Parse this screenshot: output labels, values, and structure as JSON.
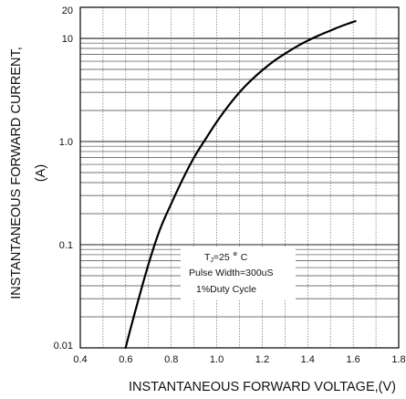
{
  "chart_data": {
    "type": "line",
    "title": "",
    "xlabel": "INSTANTANEOUS FORWARD VOLTAGE,(V)",
    "ylabel_line1": "INSTANTANEOUS FORWARD CURRENT,",
    "ylabel_line2": "(A)",
    "xlim": [
      0.4,
      1.8
    ],
    "ylim": [
      0.01,
      20
    ],
    "yscale": "log",
    "grid": true,
    "x_tick_labels": [
      "0.4",
      "0.6",
      "0.8",
      "1.0",
      "1.2",
      "1.4",
      "1.6",
      "1.8"
    ],
    "y_tick_labels": [
      "0.01",
      "0.1",
      "1.0",
      "10",
      "20"
    ],
    "series": [
      {
        "color": "#000000",
        "x": [
          0.599,
          0.64,
          0.7,
          0.75,
          0.8,
          0.85,
          0.9,
          0.95,
          1.0,
          1.05,
          1.1,
          1.15,
          1.2,
          1.25,
          1.3,
          1.35,
          1.4,
          1.45,
          1.5,
          1.55,
          1.61
        ],
        "y": [
          0.01,
          0.022,
          0.065,
          0.14,
          0.25,
          0.43,
          0.7,
          1.05,
          1.55,
          2.2,
          3.0,
          3.9,
          4.9,
          6.0,
          7.1,
          8.3,
          9.5,
          10.7,
          11.9,
          13.2,
          14.7
        ]
      }
    ],
    "annotation": {
      "line1_main": "T",
      "line1_sub": "J",
      "line1_rest": "=25",
      "line1_unit": "C",
      "line2": "Pulse Width=300uS",
      "line3": "1%Duty Cycle"
    }
  }
}
